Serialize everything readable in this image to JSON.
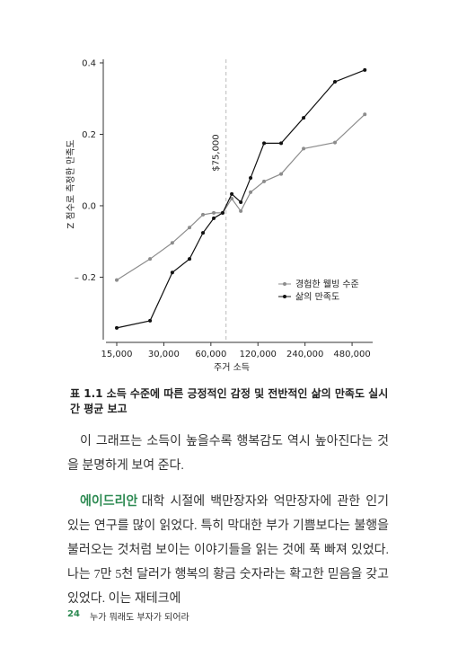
{
  "chart_data": {
    "type": "line",
    "y_label": "Z 점수로 측정한 만족도",
    "x_label": "주거 소득",
    "x": [
      15000,
      24500,
      34000,
      43800,
      53400,
      62600,
      71400,
      81600,
      93200,
      107700,
      131300,
      168800,
      235000,
      373000,
      579000
    ],
    "series": [
      {
        "name": "경험한 웰빙 수준",
        "color": "#8c8c8c",
        "values": [
          -0.208,
          -0.149,
          -0.104,
          -0.061,
          -0.025,
          -0.02,
          -0.02,
          0.02,
          -0.015,
          0.038,
          0.068,
          0.089,
          0.16,
          0.177,
          0.256
        ]
      },
      {
        "name": "삶의 만족도",
        "color": "#111111",
        "values": [
          -0.342,
          -0.322,
          -0.187,
          -0.149,
          -0.076,
          -0.035,
          -0.02,
          0.033,
          0.01,
          0.078,
          0.175,
          0.175,
          0.246,
          0.347,
          0.38
        ]
      }
    ],
    "xlim": [
      12300,
      650000
    ],
    "x_log": true,
    "xticks": [
      {
        "value": 15000,
        "label": "15,000"
      },
      {
        "value": 30000,
        "label": "30,000"
      },
      {
        "value": 60000,
        "label": "60,000"
      },
      {
        "value": 120000,
        "label": "120,000"
      },
      {
        "value": 240000,
        "label": "240,000"
      },
      {
        "value": 480000,
        "label": "480,000"
      }
    ],
    "ylim": [
      -0.375,
      0.41
    ],
    "yticks": [
      {
        "value": -0.2,
        "label": "– 0.2"
      },
      {
        "value": 0,
        "label": "0.0"
      },
      0.2,
      0.4
    ],
    "annotation": {
      "label": "$75,000",
      "x": 75000
    },
    "legend": "lower right"
  },
  "caption": "표 1.1 소득 수준에 따른 긍정적인 감정 및 전반적인 삶의 만족도 실시간 평균 보고",
  "paragraphs": [
    {
      "text": "이 그래프는 소득이 높을수록 행복감도 역시 높아진다는 것을 분명하게 보여 준다."
    },
    {
      "highlight": "에이드리안",
      "text": "대학 시절에 백만장자와 억만장자에 관한 인기 있는 연구를 많이 읽었다. 특히 막대한 부가 기쁨보다는 불행을 불러오는 것처럼 보이는 이야기들을 읽는 것에 푹 빠져 있었다. 나는 7만 5천 달러가 행복의 황금 숫자라는 확고한 믿음을 갖고 있었다. 이는 재테크에"
    }
  ],
  "footer": {
    "page": 24,
    "title": "누가 뭐래도 부자가 되어라"
  }
}
